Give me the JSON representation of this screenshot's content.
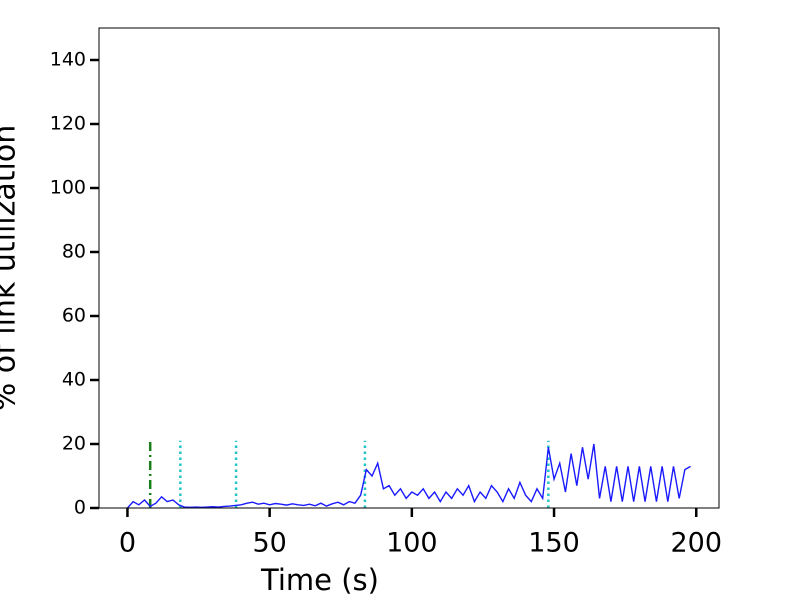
{
  "chart_data": {
    "type": "line",
    "xlabel": "Time (s)",
    "ylabel": "% of link utilization",
    "xlim": [
      -10,
      208
    ],
    "ylim": [
      0,
      150
    ],
    "xticks": [
      0,
      50,
      100,
      150,
      200
    ],
    "yticks": [
      0,
      20,
      40,
      60,
      80,
      100,
      120,
      140
    ],
    "x": [
      0,
      2,
      4,
      6,
      8,
      10,
      12,
      14,
      16,
      18,
      20,
      22,
      24,
      26,
      28,
      30,
      32,
      34,
      36,
      38,
      40,
      42,
      44,
      46,
      48,
      50,
      52,
      54,
      56,
      58,
      60,
      62,
      64,
      66,
      68,
      70,
      72,
      74,
      76,
      78,
      80,
      82,
      84,
      86,
      88,
      90,
      92,
      94,
      96,
      98,
      100,
      102,
      104,
      106,
      108,
      110,
      112,
      114,
      116,
      118,
      120,
      122,
      124,
      126,
      128,
      130,
      132,
      134,
      136,
      138,
      140,
      142,
      144,
      146,
      148,
      150,
      152,
      154,
      156,
      158,
      160,
      162,
      164,
      166,
      168,
      170,
      172,
      174,
      176,
      178,
      180,
      182,
      184,
      186,
      188,
      190,
      192,
      194,
      196,
      198
    ],
    "series": [
      {
        "color": "#1a1aff",
        "values": [
          0,
          2,
          1,
          2.5,
          0.5,
          1.5,
          3.5,
          2,
          2.5,
          1,
          0.3,
          0.2,
          0.3,
          0.2,
          0.3,
          0.4,
          0.3,
          0.5,
          0.6,
          0.8,
          1,
          1.5,
          1.8,
          1.2,
          1.5,
          1,
          1.4,
          1.2,
          0.9,
          1.3,
          1,
          0.8,
          1.2,
          0.7,
          1.5,
          0.6,
          1.3,
          1.8,
          1,
          2,
          1.5,
          4,
          12,
          10,
          14,
          6,
          7,
          4,
          6,
          3,
          5,
          4,
          6,
          3,
          5,
          2,
          5,
          3,
          6,
          4,
          7,
          2,
          5,
          3,
          7,
          5,
          2,
          6,
          3,
          8,
          4,
          2,
          6,
          3,
          19,
          9,
          14,
          5,
          17,
          7,
          19,
          9,
          20,
          3,
          13,
          2,
          13,
          2,
          13,
          2,
          13,
          2,
          13,
          2,
          13,
          2,
          13,
          3,
          12,
          13
        ]
      }
    ],
    "vlines": [
      {
        "x": 8,
        "ymax": 21,
        "color": "#1a7f1a",
        "style": "dashdot"
      },
      {
        "x": 18.6,
        "ymax": 21,
        "color": "#22c4c4",
        "style": "dotted"
      },
      {
        "x": 38.2,
        "ymax": 21,
        "color": "#22c4c4",
        "style": "dotted"
      },
      {
        "x": 83.5,
        "ymax": 21,
        "color": "#22c4c4",
        "style": "dotted"
      },
      {
        "x": 148,
        "ymax": 21,
        "color": "#22c4c4",
        "style": "dotted"
      }
    ]
  }
}
